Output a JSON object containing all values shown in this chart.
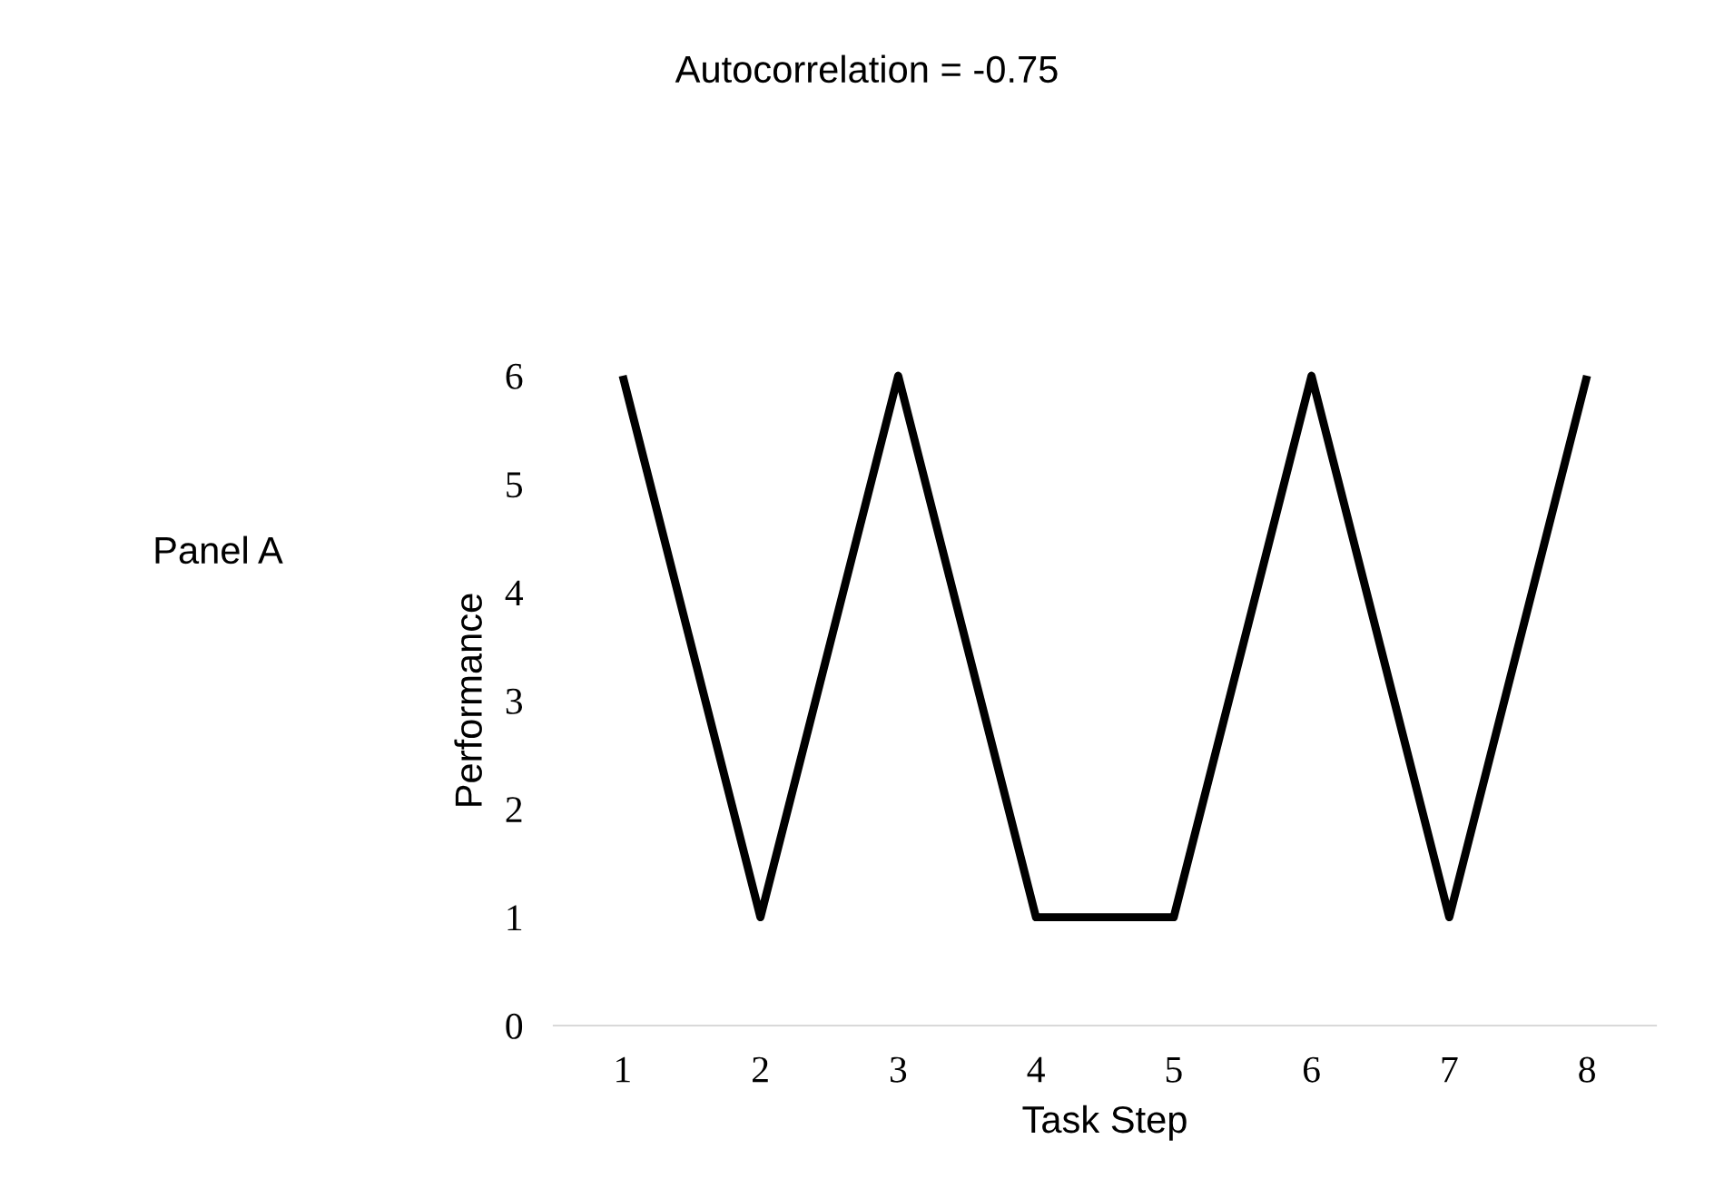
{
  "chart_data": {
    "type": "line",
    "title": "Autocorrelation = -0.75",
    "xlabel": "Task Step",
    "ylabel": "Performance",
    "annotations": [
      "Panel A"
    ],
    "categories": [
      "1",
      "2",
      "3",
      "4",
      "5",
      "6",
      "7",
      "8"
    ],
    "series": [
      {
        "color": "#000000",
        "values": [
          6,
          1,
          6,
          1,
          1,
          6,
          1,
          6
        ]
      }
    ],
    "ylim": [
      0,
      6
    ],
    "yticks": [
      0,
      1,
      2,
      3,
      4,
      5,
      6
    ],
    "grid": false,
    "legend": false,
    "marker": "none",
    "line_style": "solid"
  }
}
